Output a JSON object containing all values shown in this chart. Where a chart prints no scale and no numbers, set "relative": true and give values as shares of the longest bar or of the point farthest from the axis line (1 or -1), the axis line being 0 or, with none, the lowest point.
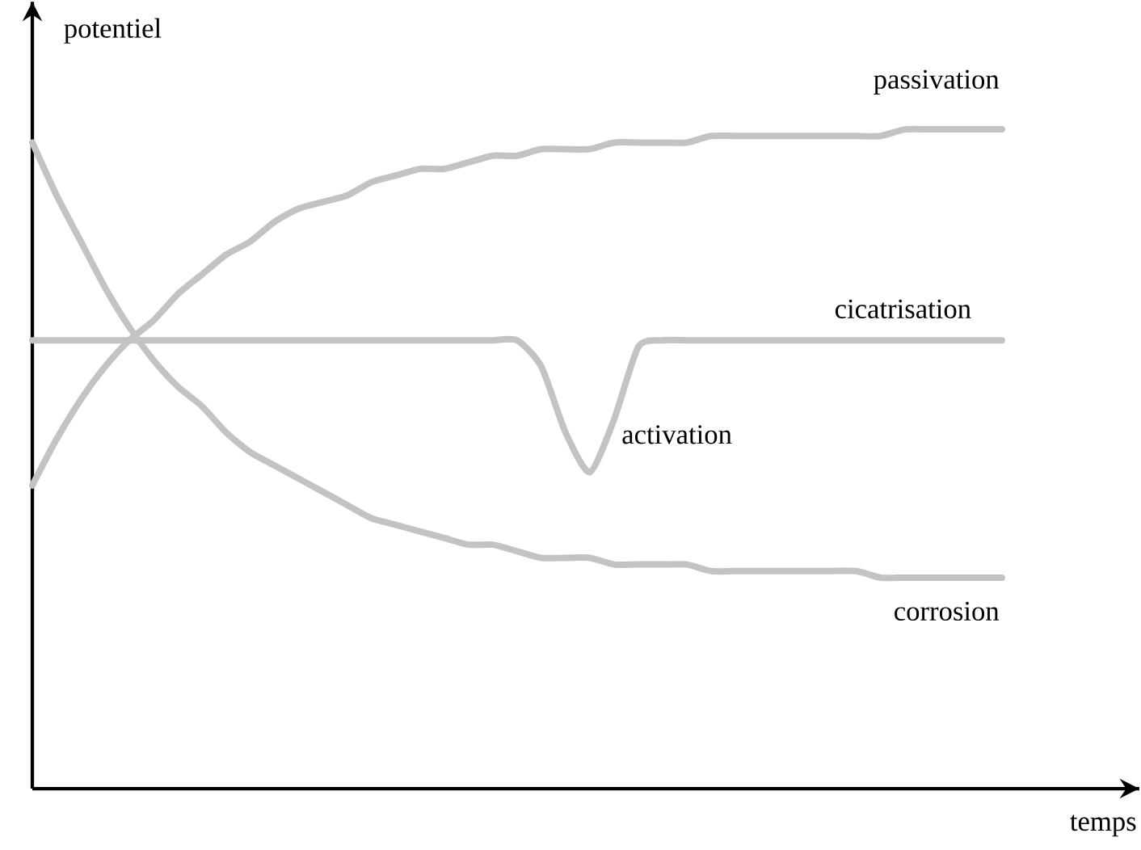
{
  "chart_data": {
    "type": "line",
    "relative": true,
    "xlabel": "temps",
    "ylabel": "potentiel",
    "categories": [
      null,
      null,
      null,
      null,
      null,
      null,
      null,
      null,
      null,
      null,
      null,
      null,
      null,
      null,
      null,
      null,
      null,
      null,
      null,
      null,
      null,
      null,
      null,
      null,
      null,
      null,
      null,
      null,
      null,
      null,
      null,
      null,
      null,
      null,
      null,
      null,
      null,
      null,
      null,
      null,
      null
    ],
    "series": [
      {
        "name": "passivation",
        "color": "#c3c3c3",
        "values": [
          0.46,
          0.53,
          0.59,
          0.64,
          0.68,
          0.71,
          0.75,
          0.78,
          0.81,
          0.83,
          0.86,
          0.88,
          0.89,
          0.9,
          0.92,
          0.93,
          0.94,
          0.94,
          0.95,
          0.96,
          0.96,
          0.97,
          0.97,
          0.97,
          0.98,
          0.98,
          0.98,
          0.98,
          0.99,
          0.99,
          0.99,
          0.99,
          0.99,
          0.99,
          0.99,
          0.99,
          1.0,
          1.0,
          1.0,
          1.0,
          1.0
        ]
      },
      {
        "name": "cicatrisation",
        "color": "#c3c3c3",
        "values": [
          0.68,
          0.68,
          0.68,
          0.68,
          0.68,
          0.68,
          0.68,
          0.68,
          0.68,
          0.68,
          0.68,
          0.68,
          0.68,
          0.68,
          0.68,
          0.68,
          0.68,
          0.68,
          0.68,
          0.68,
          0.68,
          0.64,
          0.54,
          0.48,
          0.56,
          0.67,
          0.68,
          0.68,
          0.68,
          0.68,
          0.68,
          0.68,
          0.68,
          0.68,
          0.68,
          0.68,
          0.68,
          0.68,
          0.68,
          0.68,
          0.68
        ]
      },
      {
        "name": "corrosion",
        "color": "#c3c3c3",
        "values": [
          0.98,
          0.9,
          0.83,
          0.76,
          0.7,
          0.65,
          0.61,
          0.58,
          0.54,
          0.51,
          0.49,
          0.47,
          0.45,
          0.43,
          0.41,
          0.4,
          0.39,
          0.38,
          0.37,
          0.37,
          0.36,
          0.35,
          0.35,
          0.35,
          0.34,
          0.34,
          0.34,
          0.34,
          0.33,
          0.33,
          0.33,
          0.33,
          0.33,
          0.33,
          0.33,
          0.32,
          0.32,
          0.32,
          0.32,
          0.32,
          0.32
        ]
      }
    ],
    "annotations": [
      "activation"
    ]
  }
}
